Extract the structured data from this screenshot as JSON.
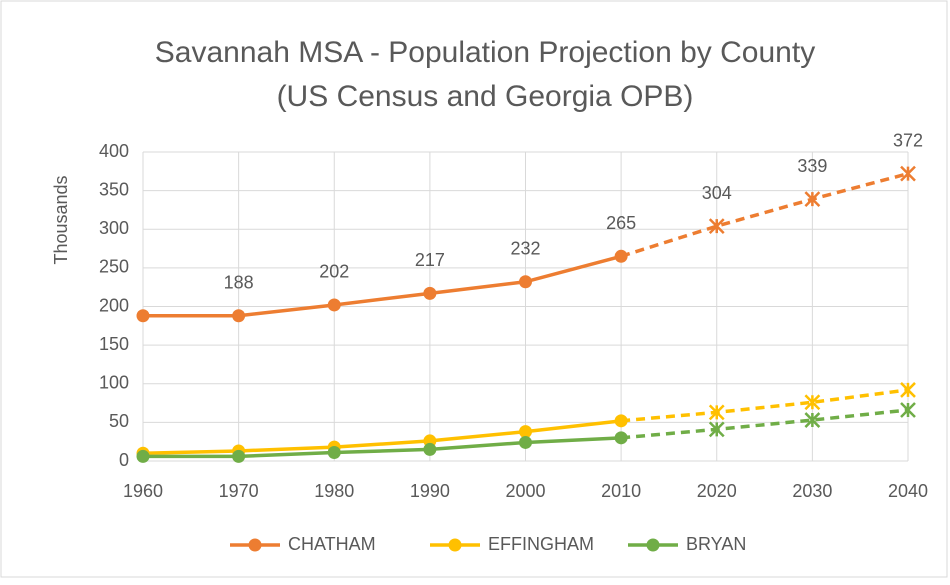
{
  "chart_data": {
    "type": "line",
    "title": [
      "Savannah MSA - Population Projection by County",
      "(US Census and Georgia OPB)"
    ],
    "y_label": "Thousands",
    "categories": [
      "1960",
      "1970",
      "1980",
      "1990",
      "2000",
      "2010",
      "2020",
      "2030",
      "2040"
    ],
    "projected_from": 6,
    "series": [
      {
        "name": "CHATHAM",
        "color": "#ED7D31",
        "values": [
          188,
          188,
          202,
          217,
          232,
          265,
          304,
          339,
          372
        ],
        "value_labels": [
          null,
          "188",
          "202",
          "217",
          "232",
          "265",
          "304",
          "339",
          "372"
        ]
      },
      {
        "name": "EFFINGHAM",
        "color": "#FFC000",
        "values": [
          10,
          13,
          18,
          26,
          38,
          52,
          63,
          76,
          92
        ]
      },
      {
        "name": "BRYAN",
        "color": "#70AD47",
        "values": [
          6,
          6,
          11,
          15,
          24,
          30,
          41,
          53,
          66
        ]
      }
    ],
    "ylim": [
      0,
      400
    ],
    "yticks": [
      0,
      50,
      100,
      150,
      200,
      250,
      300,
      350,
      400
    ],
    "grid": true,
    "legend": "bottom"
  }
}
